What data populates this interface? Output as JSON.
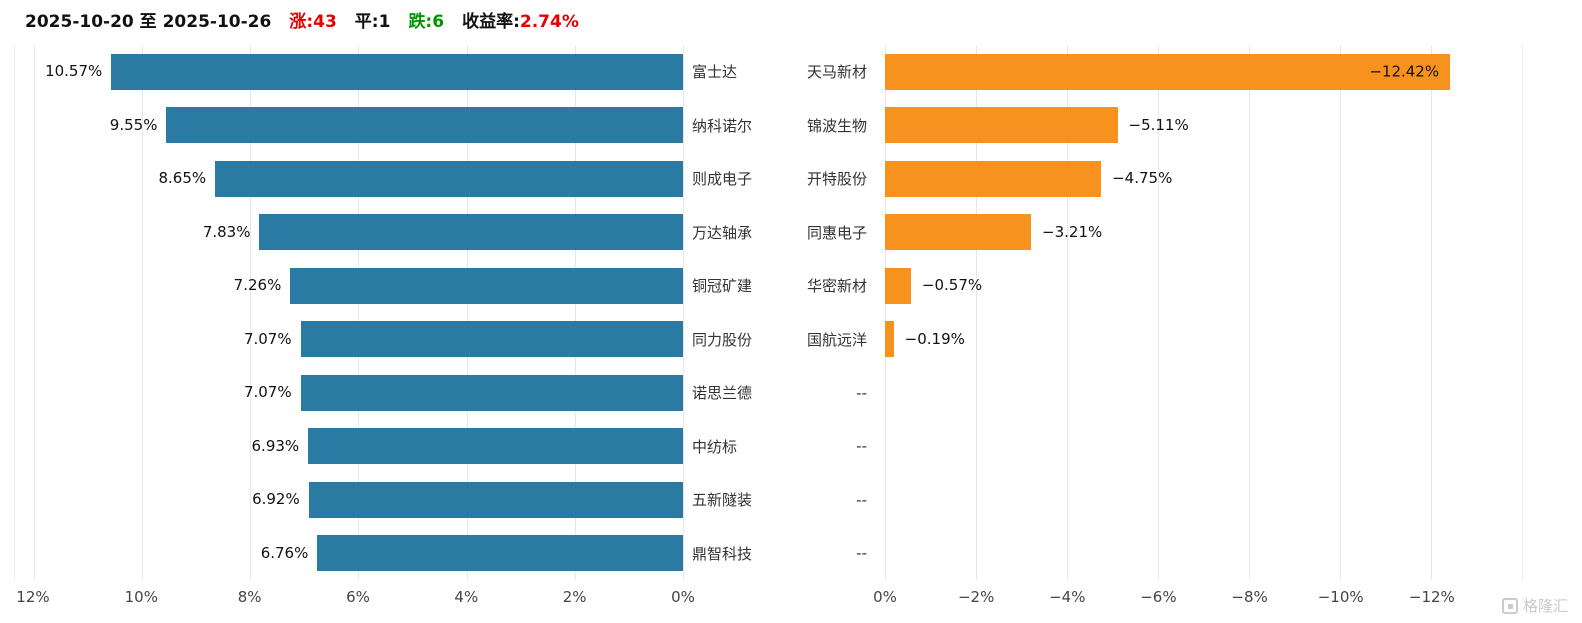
{
  "header": {
    "date_range": "2025-10-20 至 2025-10-26",
    "up_label": "涨:43",
    "flat_label": "平:1",
    "down_label": "跌:6",
    "yield_label": "收益率:",
    "yield_value": "2.74%"
  },
  "colors": {
    "up_text": "#e60000",
    "down_text": "#009600",
    "gain_bar": "#2b7aa4",
    "loss_bar": "#f8921f",
    "gridline": "#e7e7e7"
  },
  "watermark": {
    "text": "格隆汇"
  },
  "chart_data": {
    "type": "bar",
    "orientation": "horizontal",
    "grid": true,
    "legend": "none",
    "empty_placeholder": "--",
    "panels": [
      {
        "id": "gainers",
        "direction": "left",
        "bar_color": "#2b7aa4",
        "axis_ticks": [
          "12%",
          "10%",
          "8%",
          "6%",
          "4%",
          "2%",
          "0%"
        ],
        "tick_values": [
          12,
          10,
          8,
          6,
          4,
          2,
          0
        ],
        "domain_max": 12.35,
        "categories": [
          "富士达",
          "纳科诺尔",
          "则成电子",
          "万达轴承",
          "铜冠矿建",
          "同力股份",
          "诺思兰德",
          "中纺标",
          "五新隧装",
          "鼎智科技"
        ],
        "values": [
          10.57,
          9.55,
          8.65,
          7.83,
          7.26,
          7.07,
          7.07,
          6.93,
          6.92,
          6.76
        ],
        "labels": [
          "10.57%",
          "9.55%",
          "8.65%",
          "7.83%",
          "7.26%",
          "7.07%",
          "7.07%",
          "6.93%",
          "6.92%",
          "6.76%"
        ]
      },
      {
        "id": "losers",
        "direction": "right",
        "bar_color": "#f8921f",
        "axis_ticks": [
          "0%",
          "−2%",
          "−4%",
          "−6%",
          "−8%",
          "−10%",
          "−12%"
        ],
        "tick_values": [
          0,
          2,
          4,
          6,
          8,
          10,
          12
        ],
        "domain_max": 14,
        "categories": [
          "天马新材",
          "锦波生物",
          "开特股份",
          "同惠电子",
          "华密新材",
          "国航远洋",
          "--",
          "--",
          "--",
          "--"
        ],
        "values": [
          12.42,
          5.11,
          4.75,
          3.21,
          0.57,
          0.19,
          null,
          null,
          null,
          null
        ],
        "labels": [
          "−12.42%",
          "−5.11%",
          "−4.75%",
          "−3.21%",
          "−0.57%",
          "−0.19%",
          "",
          "",
          "",
          ""
        ]
      }
    ]
  }
}
